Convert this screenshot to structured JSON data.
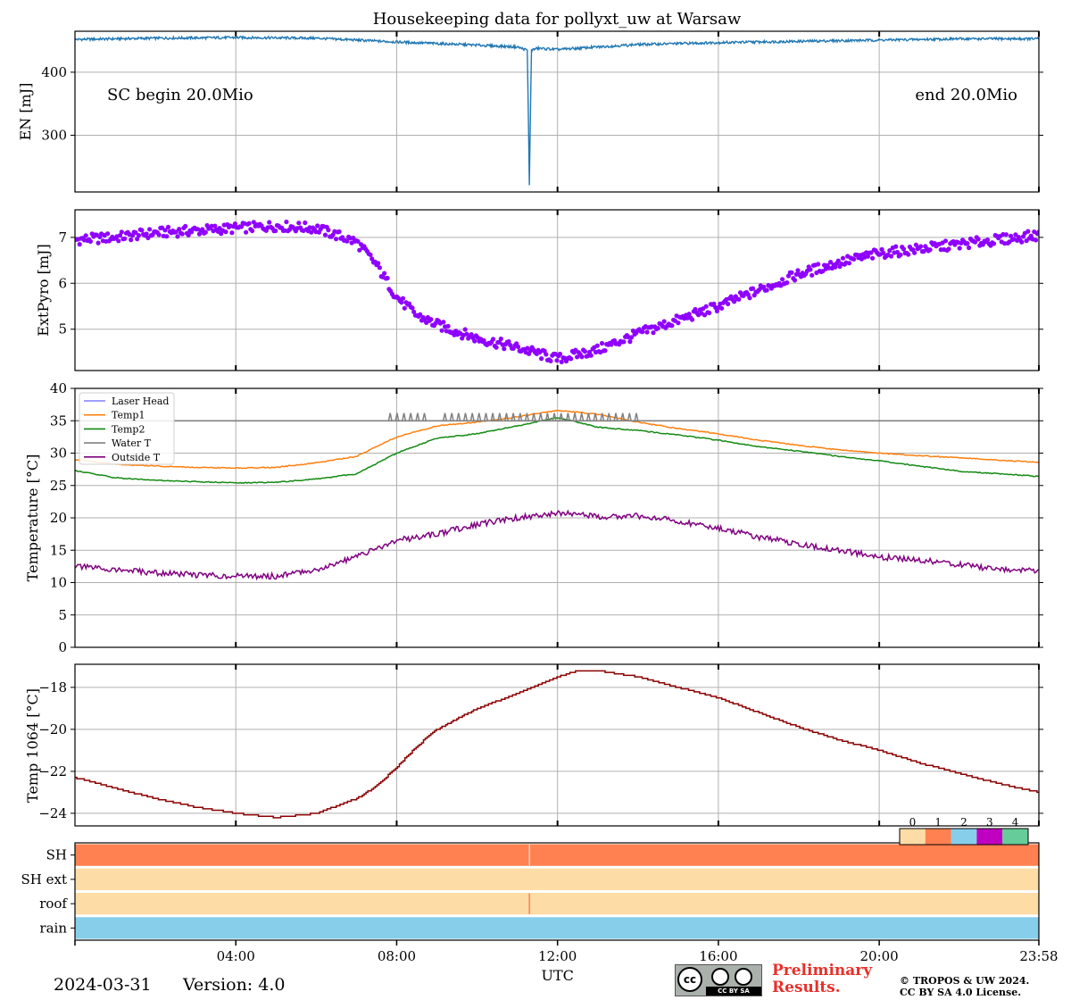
{
  "figure": {
    "title": "Housekeeping data for pollyxt_uw at Warsaw",
    "date": "2024-03-31",
    "version": "Version: 4.0",
    "preliminary": [
      "Preliminary",
      "Results."
    ],
    "copyright": [
      "© TROPOS & UW 2024.",
      "CC BY SA 4.0 License."
    ],
    "license_badge": "CC BY SA",
    "xlabel": "UTC",
    "x_ticklabels": [
      "04:00",
      "08:00",
      "12:00",
      "16:00",
      "20:00",
      "23:58"
    ],
    "colors": {
      "en": "#1f77b4",
      "pyro": "#8f00ff",
      "laser_head": "#7f7fff",
      "temp1": "#ff7f0e",
      "temp2": "#138a13",
      "water": "#808080",
      "outside": "#800080",
      "t1064": "#8b0000",
      "flag0": "#fddca5",
      "flag1": "#ff8050",
      "flag2": "#87ceeb",
      "flag3": "#c000c0",
      "flag4": "#66cc99"
    }
  },
  "chart_data": [
    {
      "type": "line",
      "ylabel": "EN [mJ]",
      "x_range_hours": [
        0,
        23.97
      ],
      "ylim": [
        210,
        465
      ],
      "yticks": [
        300,
        400
      ],
      "annotations": [
        "SC begin 20.0Mio",
        "end 20.0Mio"
      ],
      "series": [
        {
          "x": [
            0,
            2,
            4,
            6,
            8,
            10,
            11.0,
            11.25,
            11.3,
            11.35,
            11.5,
            12,
            14,
            16,
            18,
            20,
            22,
            23.97
          ],
          "values": [
            452,
            454,
            455,
            454,
            448,
            443,
            440,
            435,
            220,
            435,
            438,
            436,
            444,
            447,
            449,
            451,
            453,
            453
          ]
        }
      ]
    },
    {
      "type": "scatter",
      "ylabel": "ExtPyro [mJ]",
      "x_range_hours": [
        0,
        23.97
      ],
      "ylim": [
        4.1,
        7.6
      ],
      "yticks": [
        5,
        6,
        7
      ],
      "series": [
        {
          "x": [
            0,
            1,
            2,
            3,
            4,
            5,
            6,
            7,
            7.5,
            8,
            8.5,
            9,
            10,
            11,
            12,
            13,
            14,
            15,
            16,
            17,
            18,
            19,
            20,
            21,
            22,
            23,
            23.97
          ],
          "values": [
            6.95,
            7.0,
            7.1,
            7.15,
            7.2,
            7.25,
            7.2,
            6.9,
            6.4,
            5.7,
            5.3,
            5.1,
            4.8,
            4.6,
            4.35,
            4.55,
            4.9,
            5.2,
            5.5,
            5.85,
            6.2,
            6.45,
            6.65,
            6.75,
            6.85,
            6.95,
            7.05
          ]
        }
      ]
    },
    {
      "type": "line",
      "ylabel": "Temperature [$^\\circ C$]",
      "x_range_hours": [
        0,
        23.97
      ],
      "ylim": [
        0,
        40
      ],
      "yticks": [
        0,
        5,
        10,
        15,
        20,
        25,
        30,
        35,
        40
      ],
      "legend_position": "top-left",
      "series": [
        {
          "name": "Laser Head",
          "x": [
            0,
            23.97
          ],
          "values": [
            35,
            35
          ]
        },
        {
          "name": "Temp1",
          "x": [
            0,
            1,
            2,
            3,
            4,
            5,
            6,
            7,
            8,
            9,
            10,
            11,
            12,
            13,
            14,
            15,
            16,
            17,
            18,
            19,
            20,
            21,
            22,
            23,
            23.97
          ],
          "values": [
            29.0,
            28.3,
            28.0,
            27.8,
            27.7,
            27.8,
            28.5,
            29.5,
            32.5,
            34.2,
            34.8,
            35.6,
            36.6,
            36.0,
            34.8,
            33.8,
            33.0,
            32.0,
            31.2,
            30.5,
            30.0,
            29.6,
            29.3,
            28.9,
            28.6
          ]
        },
        {
          "name": "Temp2",
          "x": [
            0,
            1,
            2,
            3,
            4,
            5,
            6,
            7,
            8,
            9,
            10,
            11,
            12,
            13,
            14,
            15,
            16,
            17,
            18,
            19,
            20,
            21,
            22,
            23,
            23.97
          ],
          "values": [
            27.3,
            26.2,
            25.8,
            25.6,
            25.4,
            25.5,
            26.0,
            26.8,
            30.0,
            32.3,
            33.0,
            34.2,
            35.5,
            34.0,
            33.5,
            32.8,
            32.0,
            31.0,
            30.3,
            29.5,
            28.8,
            28.0,
            27.2,
            26.8,
            26.4
          ]
        },
        {
          "name": "Water T",
          "x": [
            0,
            7.8,
            23.97
          ],
          "values": [
            35,
            35,
            35
          ]
        },
        {
          "name": "Outside T",
          "x": [
            0,
            1,
            2,
            3,
            4,
            5,
            6,
            7,
            8,
            9,
            10,
            11,
            12,
            13,
            14,
            15,
            16,
            17,
            18,
            19,
            20,
            21,
            22,
            23,
            23.97
          ],
          "values": [
            12.5,
            12.0,
            11.5,
            11.2,
            11.0,
            11.0,
            12.0,
            14.0,
            16.5,
            17.5,
            19.0,
            20.0,
            20.8,
            20.2,
            20.3,
            19.5,
            18.5,
            17.0,
            16.0,
            15.0,
            14.0,
            13.5,
            12.8,
            12.0,
            11.8
          ]
        }
      ]
    },
    {
      "type": "line",
      "ylabel": "Temp 1064 [$^\\circ C$]",
      "x_range_hours": [
        0,
        23.97
      ],
      "ylim": [
        -24.6,
        -16.9
      ],
      "yticks": [
        -24,
        -22,
        -20,
        -18
      ],
      "series": [
        {
          "x": [
            0,
            1,
            2,
            3,
            4,
            5,
            6,
            7,
            7.5,
            8,
            8.5,
            9,
            10,
            11,
            12,
            12.5,
            13,
            14,
            15,
            16,
            17,
            18,
            19,
            20,
            21,
            22,
            23,
            23.97
          ],
          "values": [
            -22.3,
            -22.8,
            -23.3,
            -23.7,
            -24.0,
            -24.2,
            -24.0,
            -23.3,
            -22.7,
            -21.8,
            -20.8,
            -20.0,
            -19.0,
            -18.3,
            -17.5,
            -17.2,
            -17.2,
            -17.5,
            -18.0,
            -18.5,
            -19.2,
            -19.9,
            -20.5,
            -21.0,
            -21.6,
            -22.1,
            -22.6,
            -23.0
          ]
        }
      ]
    },
    {
      "type": "heatmap",
      "rows": [
        "SH",
        "SH ext",
        "roof",
        "rain"
      ],
      "colorbar_labels": [
        "0",
        "1",
        "2",
        "3",
        "4"
      ],
      "flag_values": [
        1,
        0,
        0,
        2
      ],
      "gap_hours": 11.3
    }
  ]
}
